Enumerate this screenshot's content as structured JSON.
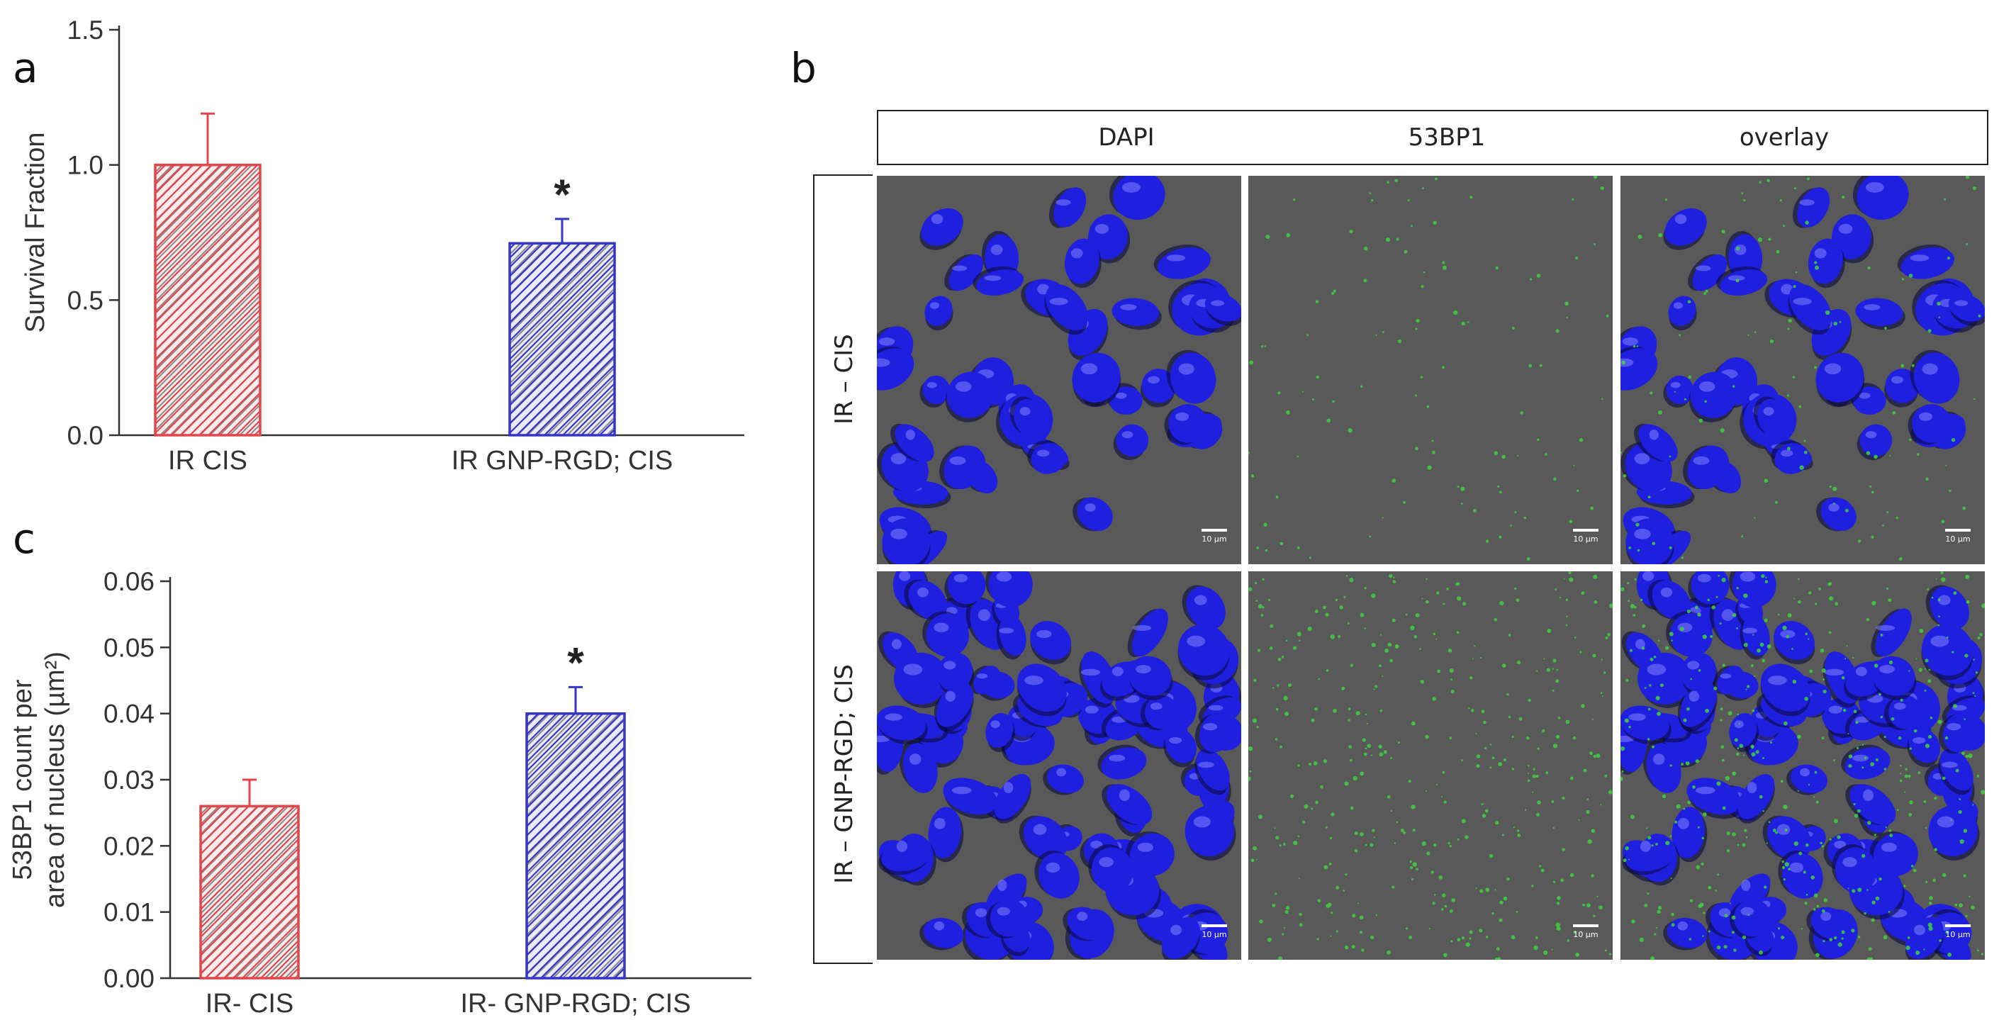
{
  "panels": {
    "a": "a",
    "b": "b",
    "c": "c"
  },
  "chart_data": [
    {
      "type": "bar",
      "panel": "a",
      "categories": [
        "IR CIS",
        "IR GNP-RGD; CIS"
      ],
      "values": [
        1.0,
        0.71
      ],
      "errors": [
        0.19,
        0.09
      ],
      "bar_colors": [
        "#e0464b",
        "#3535c8"
      ],
      "annotations": [
        "",
        "*"
      ],
      "ylabel": "Survival Fraction",
      "ylim": [
        0,
        1.5
      ],
      "yticks": [
        "0.0",
        "0.5",
        "1.0",
        "1.5"
      ],
      "ytick_values": [
        0,
        0.5,
        1.0,
        1.5
      ]
    },
    {
      "type": "bar",
      "panel": "c",
      "categories": [
        "IR- CIS",
        "IR- GNP-RGD; CIS"
      ],
      "values": [
        0.026,
        0.04
      ],
      "errors": [
        0.004,
        0.004
      ],
      "bar_colors": [
        "#e0464b",
        "#3535c8"
      ],
      "annotations": [
        "",
        "*"
      ],
      "ylabel_lines": [
        "53BP1 count per",
        "area of nucleus (µm²)"
      ],
      "ylim": [
        0,
        0.06
      ],
      "yticks": [
        "0.00",
        "0.01",
        "0.02",
        "0.03",
        "0.04",
        "0.05",
        "0.06"
      ],
      "ytick_values": [
        0,
        0.01,
        0.02,
        0.03,
        0.04,
        0.05,
        0.06
      ]
    }
  ],
  "micrograph_grid": {
    "columns": [
      "DAPI",
      "53BP1",
      "overlay"
    ],
    "rows": [
      "IR – CIS",
      "IR – GNP-RGD; CIS"
    ],
    "scale_bar": "10 µm",
    "colors": {
      "background": "#595959",
      "nucleus": "#1f1fe0",
      "foci": "#3fd13f"
    }
  }
}
